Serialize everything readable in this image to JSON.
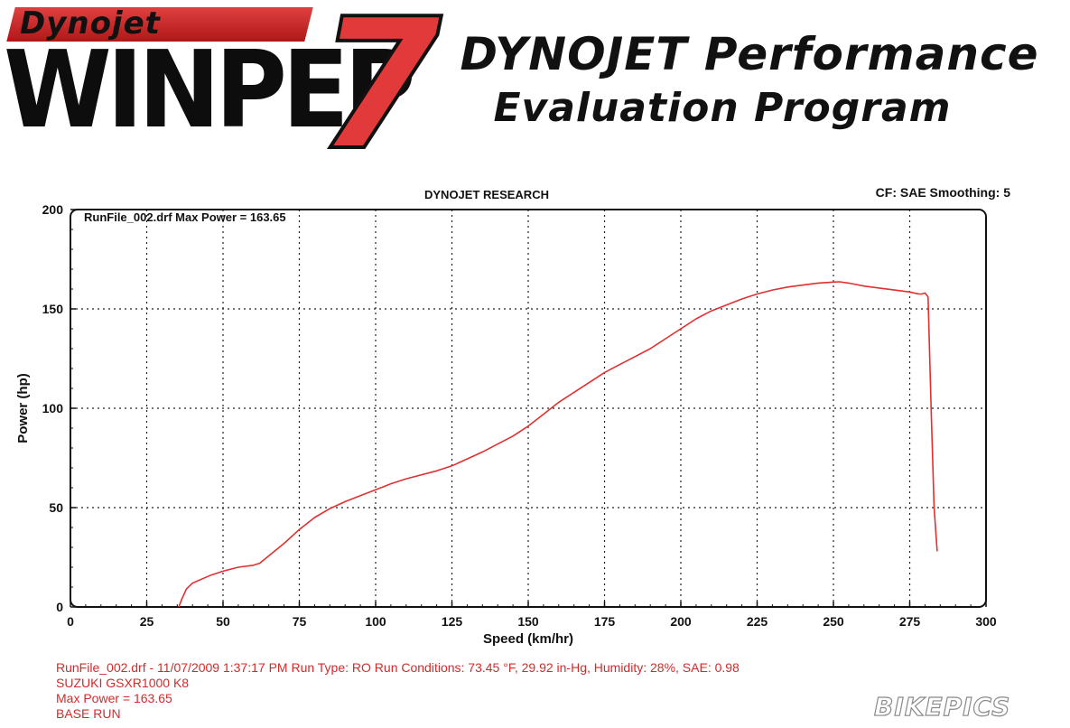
{
  "header": {
    "brand_small": "Dynojet",
    "logo_main": "WINPEP",
    "logo_number": "7",
    "title_line1": "DYNOJET Performance",
    "title_line2": "Evaluation Program"
  },
  "chart_header": {
    "title": "DYNOJET RESEARCH",
    "cf_label": "CF: SAE  Smoothing: 5"
  },
  "chart_data": {
    "type": "line",
    "title": "DYNOJET RESEARCH",
    "annotation": "RunFile_002.drf Max Power = 163.65",
    "xlabel": "Speed (km/hr)",
    "ylabel": "Power (hp)",
    "xlim": [
      0,
      300
    ],
    "ylim": [
      0,
      200
    ],
    "x_ticks": [
      0,
      25,
      50,
      75,
      100,
      125,
      150,
      175,
      200,
      225,
      250,
      275,
      300
    ],
    "y_ticks": [
      0,
      50,
      100,
      150,
      200
    ],
    "grid": true,
    "series": [
      {
        "color": "#e03030",
        "x": [
          35.5,
          36.5,
          38,
          40,
          43,
          46,
          50,
          55,
          60,
          62,
          66,
          70,
          75,
          80,
          85,
          90,
          95,
          100,
          105,
          110,
          120,
          125,
          130,
          135,
          140,
          145,
          150,
          155,
          160,
          165,
          170,
          175,
          180,
          185,
          190,
          195,
          200,
          205,
          210,
          215,
          220,
          225,
          230,
          235,
          240,
          245,
          250,
          252,
          255,
          260,
          265,
          270,
          275,
          278,
          279,
          280,
          281,
          282,
          283,
          284
        ],
        "y": [
          0,
          4,
          9,
          12,
          14,
          16,
          18,
          20,
          21,
          22,
          27,
          32,
          39,
          45,
          49.5,
          53,
          56,
          59,
          62,
          64.5,
          68.5,
          71,
          74.5,
          78,
          82,
          86,
          91,
          97,
          103,
          108,
          113,
          118,
          122,
          126,
          130,
          135,
          140,
          145,
          149,
          152,
          155,
          157.5,
          159.5,
          161,
          162,
          163,
          163.5,
          163.65,
          163,
          161.5,
          160.5,
          159.5,
          158.5,
          157.5,
          157.5,
          158,
          156,
          100,
          50,
          28
        ]
      }
    ]
  },
  "footer": {
    "line1": "RunFile_002.drf - 11/07/2009 1:37:17 PM  Run Type: RO  Run Conditions: 73.45 °F, 29.92 in-Hg,  Humidity:  28%, SAE: 0.98",
    "line2": "SUZUKI GSXR1000 K8",
    "line3": "Max Power = 163.65",
    "line4": "BASE RUN"
  },
  "watermark": "BIKEPICS"
}
